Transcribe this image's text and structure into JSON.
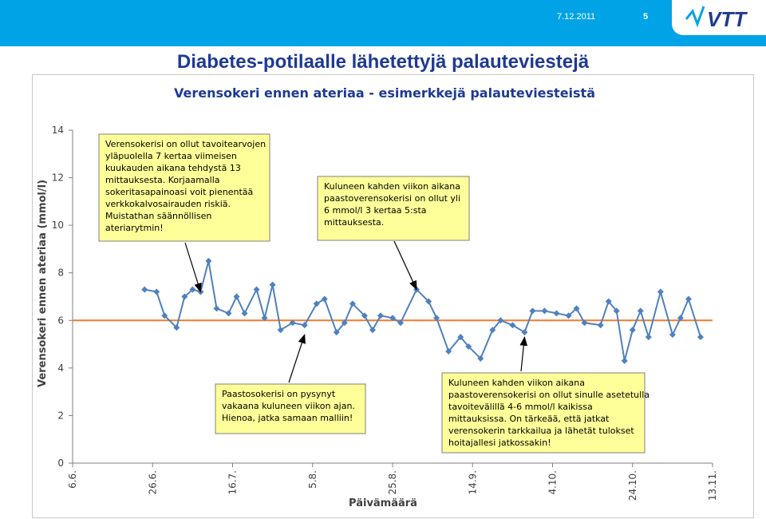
{
  "header": {
    "date": "7.12.2011",
    "page_number": "5",
    "logo_text": "VTT"
  },
  "slide": {
    "title": "Diabetes-potilaalle lähetettyjä palauteviestejä"
  },
  "colors": {
    "bar": "#00a3e6",
    "series": "#4f81bd",
    "target": "#f07c2e",
    "note_fill": "#ffff99",
    "title": "#1f3a93"
  },
  "chart_data": {
    "type": "line",
    "title": "Verensokeri ennen ateriaa - esimerkkejä palauteviesteistä",
    "xlabel": "Päivämäärä",
    "ylabel": "Verensokeri ennen ateriaa (mmol/l)",
    "ylim": [
      0,
      14
    ],
    "yticks": [
      0,
      2,
      4,
      6,
      8,
      10,
      12,
      14
    ],
    "xlim": [
      "2011-06-06",
      "2011-11-13"
    ],
    "xticks": [
      "6.6.",
      "26.6.",
      "16.7.",
      "5.8.",
      "25.8.",
      "14.9.",
      "4.10.",
      "24.10.",
      "13.11."
    ],
    "grid": false,
    "legend": "none",
    "target_line": 6,
    "series": [
      {
        "x": [
          "2011-06-24",
          "2011-06-27",
          "2011-06-29",
          "2011-07-02",
          "2011-07-04",
          "2011-07-06",
          "2011-07-08",
          "2011-07-10",
          "2011-07-12",
          "2011-07-15",
          "2011-07-17",
          "2011-07-19",
          "2011-07-22",
          "2011-07-24",
          "2011-07-26",
          "2011-07-28",
          "2011-07-31",
          "2011-08-03",
          "2011-08-06",
          "2011-08-08",
          "2011-08-11",
          "2011-08-13",
          "2011-08-15",
          "2011-08-18",
          "2011-08-20",
          "2011-08-22",
          "2011-08-25",
          "2011-08-27",
          "2011-08-31",
          "2011-09-03",
          "2011-09-05",
          "2011-09-08",
          "2011-09-11",
          "2011-09-13",
          "2011-09-16",
          "2011-09-19",
          "2011-09-21",
          "2011-09-24",
          "2011-09-27",
          "2011-09-29",
          "2011-10-02",
          "2011-10-05",
          "2011-10-08",
          "2011-10-10",
          "2011-10-12",
          "2011-10-16",
          "2011-10-18",
          "2011-10-20",
          "2011-10-22",
          "2011-10-24",
          "2011-10-26",
          "2011-10-28",
          "2011-10-31",
          "2011-11-03",
          "2011-11-05",
          "2011-11-07",
          "2011-11-10"
        ],
        "y": [
          7.3,
          7.2,
          6.2,
          5.7,
          7.0,
          7.3,
          7.2,
          8.5,
          6.5,
          6.3,
          7.0,
          6.3,
          7.3,
          6.1,
          7.5,
          5.6,
          5.9,
          5.8,
          6.7,
          6.9,
          5.5,
          5.9,
          6.7,
          6.2,
          5.6,
          6.2,
          6.1,
          5.9,
          7.3,
          6.8,
          6.1,
          4.7,
          5.3,
          4.9,
          4.4,
          5.6,
          6.0,
          5.8,
          5.5,
          6.4,
          6.4,
          6.3,
          6.2,
          6.5,
          5.9,
          5.8,
          6.8,
          6.4,
          4.3,
          5.6,
          6.4,
          5.3,
          7.2,
          5.4,
          6.1,
          6.9,
          5.3
        ]
      }
    ],
    "annotations": [
      {
        "text": "Verensokerisi on ollut tavoitearvojen yläpuolella 7 kertaa viimeisen kuukauden aikana tehdystä 13 mittauksesta. Korjaamalla sokeritasapainoasi voit pienentää verkkokalvosairauden riskiä. Muistathan säännöllisen ateriarytmin!",
        "lines": [
          "Verensokerisi on ollut tavoitearvojen",
          "yläpuolella 7 kertaa viimeisen",
          "kuukauden aikana tehdystä  13",
          "mittauksesta. Korjaamalla",
          "sokeritasapainoasi voit pienentää",
          "verkkokalvosairauden  riskiä.",
          "Muistathan säännöllisen",
          "ateriarytmin!"
        ],
        "points_to": {
          "x": "2011-07-08",
          "y": 7.2
        }
      },
      {
        "text": "Kuluneen kahden viikon aikana paastoverensokerisi on ollut yli 6 mmol/l  3 kertaa 5:sta mittauksesta.",
        "lines": [
          "Kuluneen kahden viikon aikana",
          "paastoverensokerisi on ollut yli",
          "6 mmol/l  3 kertaa 5:sta",
          "mittauksesta."
        ],
        "points_to": {
          "x": "2011-08-31",
          "y": 7.3
        }
      },
      {
        "text": "Paastosokerisi on pysynyt vakaana kuluneen viikon ajan. Hienoa, jatka samaan malliin!",
        "lines": [
          "Paastosokerisi on pysynyt",
          "vakaana kuluneen viikon ajan.",
          "Hienoa, jatka samaan malliin!"
        ],
        "points_to": {
          "x": "2011-08-03",
          "y": 5.4
        }
      },
      {
        "text": "Kuluneen kahden viikon aikana paastoverensokerisi on ollut sinulle asetetulla tavoitevälillä  4-6 mmol/l  kaikissa mittauksissa. On tärkeää, että jatkat verensokerin tarkkailua ja lähetät tulokset hoitajallesi jatkossakin!",
        "lines": [
          "Kuluneen kahden viikon aikana",
          "paastoverensokerisi on ollut sinulle asetetulla",
          "tavoitevälillä  4-6 mmol/l  kaikissa",
          "mittauksissa. On tärkeää, että jatkat",
          "verensokerin tarkkailua ja lähetät tulokset",
          "hoitajallesi jatkossakin!"
        ],
        "points_to": {
          "x": "2011-09-27",
          "y": 5.3
        }
      }
    ]
  }
}
